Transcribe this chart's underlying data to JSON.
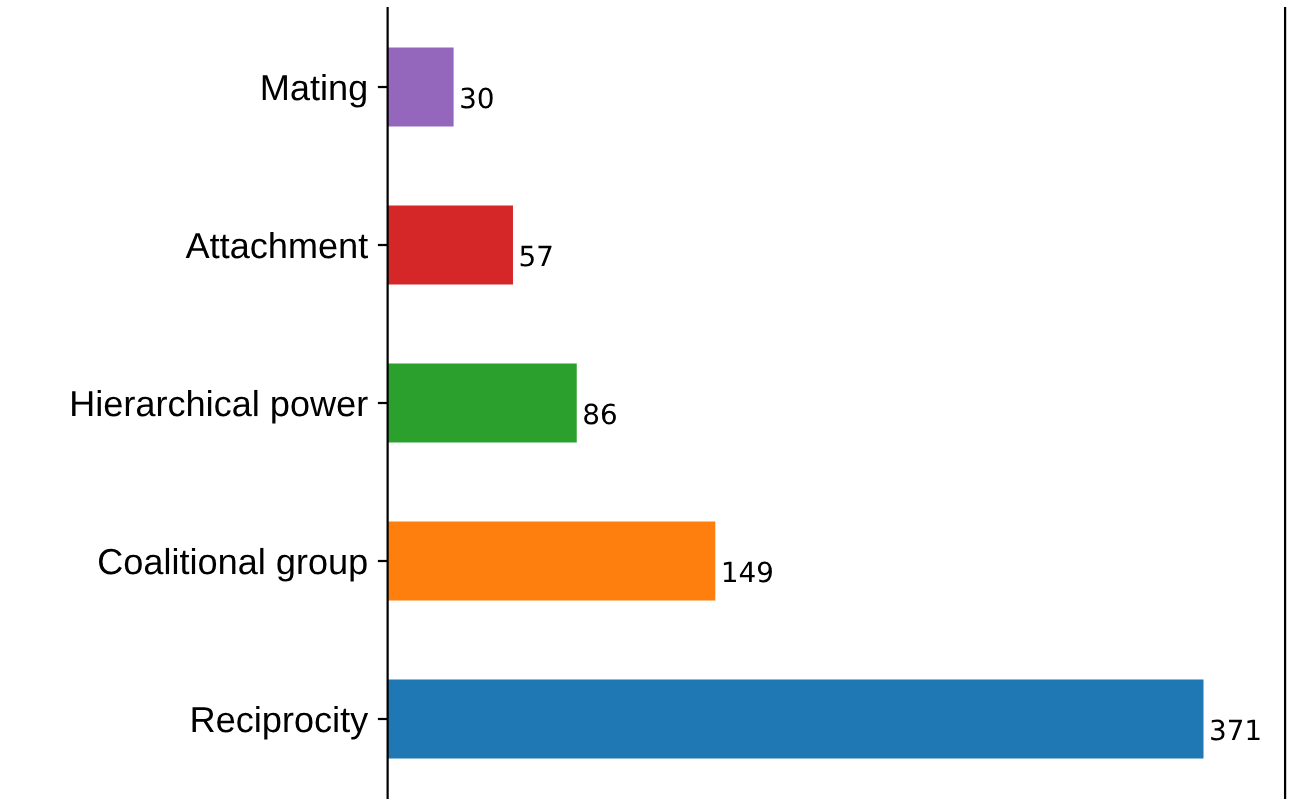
{
  "chart_data": {
    "type": "bar",
    "orientation": "horizontal",
    "categories": [
      "Mating",
      "Attachment",
      "Hierarchical power",
      "Coalitional group",
      "Reciprocity"
    ],
    "values": [
      30,
      57,
      86,
      149,
      371
    ],
    "colors": [
      "#9467bd",
      "#d62728",
      "#2ca02c",
      "#ff7f0e",
      "#1f77b4"
    ],
    "data_labels": true,
    "tick_labels": "y",
    "grid": false,
    "legend": false
  }
}
